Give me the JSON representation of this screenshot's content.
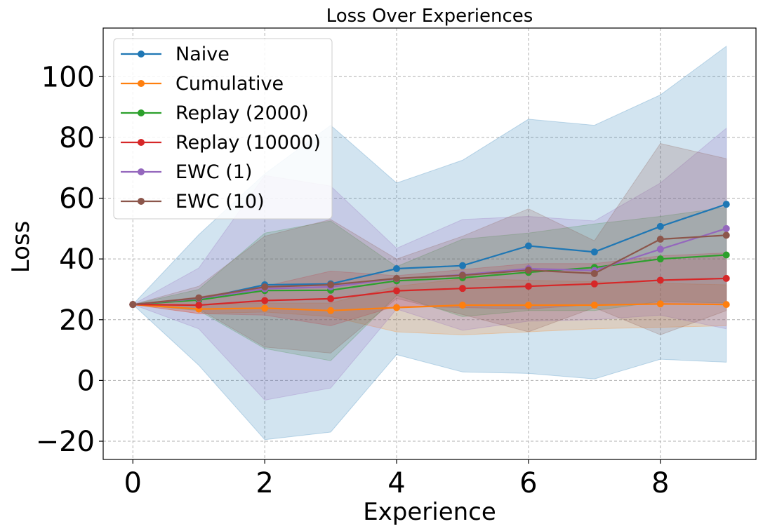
{
  "chart_data": {
    "type": "line",
    "title": "Loss Over Experiences",
    "xlabel": "Experience",
    "ylabel": "Loss",
    "xlim": [
      -0.45,
      9.45
    ],
    "ylim": [
      -26,
      116
    ],
    "xticks": [
      0,
      2,
      4,
      6,
      8
    ],
    "yticks": [
      -20,
      0,
      20,
      40,
      60,
      80,
      100
    ],
    "ytick_labels": [
      "−20",
      "0",
      "20",
      "40",
      "60",
      "80",
      "100"
    ],
    "grid": true,
    "legend_position": "top-left",
    "x": [
      0,
      1,
      2,
      3,
      4,
      5,
      6,
      7,
      8,
      9
    ],
    "series": [
      {
        "name": "Naive",
        "color": "#1f77b4",
        "values": [
          25,
          26.8,
          31.5,
          31.8,
          36.8,
          37.8,
          44.3,
          42.3,
          50.7,
          58
        ],
        "band_upper": [
          25,
          48,
          68,
          84,
          65,
          72.5,
          86,
          84,
          94,
          110
        ],
        "band_lower": [
          25,
          5,
          -19.5,
          -17,
          8.5,
          2.8,
          2.3,
          0.5,
          7,
          6
        ]
      },
      {
        "name": "Cumulative",
        "color": "#ff7f0e",
        "values": [
          25,
          23.5,
          23.8,
          23,
          24,
          24.8,
          24.8,
          24.8,
          25.2,
          25
        ],
        "band_upper": [
          25,
          25,
          25.5,
          25.5,
          31,
          33.5,
          33,
          32.5,
          32,
          31.5
        ],
        "band_lower": [
          25,
          22,
          22.5,
          21,
          16,
          15,
          16,
          17,
          17.5,
          18
        ]
      },
      {
        "name": "Replay (2000)",
        "color": "#2ca02c",
        "values": [
          25,
          26.5,
          29.6,
          29.7,
          32.8,
          33.8,
          35.6,
          37.2,
          40,
          41.3
        ],
        "band_upper": [
          25,
          30,
          48.5,
          52.5,
          37.5,
          46.5,
          48.5,
          51.5,
          54,
          57
        ],
        "band_lower": [
          25,
          23,
          10.5,
          6.5,
          28,
          21,
          23,
          23,
          26,
          25.5
        ]
      },
      {
        "name": "Replay (10000)",
        "color": "#d62728",
        "values": [
          25,
          24.8,
          26.3,
          26.9,
          29.5,
          30.3,
          31,
          31.8,
          33,
          33.6
        ],
        "band_upper": [
          25,
          27.5,
          31,
          36,
          34.5,
          36.5,
          38.5,
          38.5,
          41,
          42
        ],
        "band_lower": [
          25,
          22,
          21.5,
          18,
          24.5,
          24,
          23.5,
          25,
          25,
          25
        ]
      },
      {
        "name": "EWC (1)",
        "color": "#9467bd",
        "values": [
          25,
          27,
          30.2,
          30.8,
          33.5,
          34.8,
          36.8,
          36.2,
          43.2,
          50
        ],
        "band_upper": [
          25,
          37,
          67.5,
          64,
          43.5,
          53,
          54,
          52.5,
          65,
          83
        ],
        "band_lower": [
          25,
          17,
          -6.5,
          -2.5,
          23.5,
          16.5,
          19.5,
          20,
          21.5,
          17
        ]
      },
      {
        "name": "EWC (10)",
        "color": "#8c564b",
        "values": [
          25,
          27.2,
          30.8,
          31.5,
          33.6,
          34.6,
          36.3,
          35.2,
          46.5,
          47.8
        ],
        "band_upper": [
          25,
          31,
          47.5,
          53,
          40,
          47.5,
          56.5,
          46,
          78,
          73
        ],
        "band_lower": [
          25,
          23.5,
          11,
          9,
          27,
          21.7,
          16,
          24,
          15,
          23
        ]
      }
    ]
  }
}
